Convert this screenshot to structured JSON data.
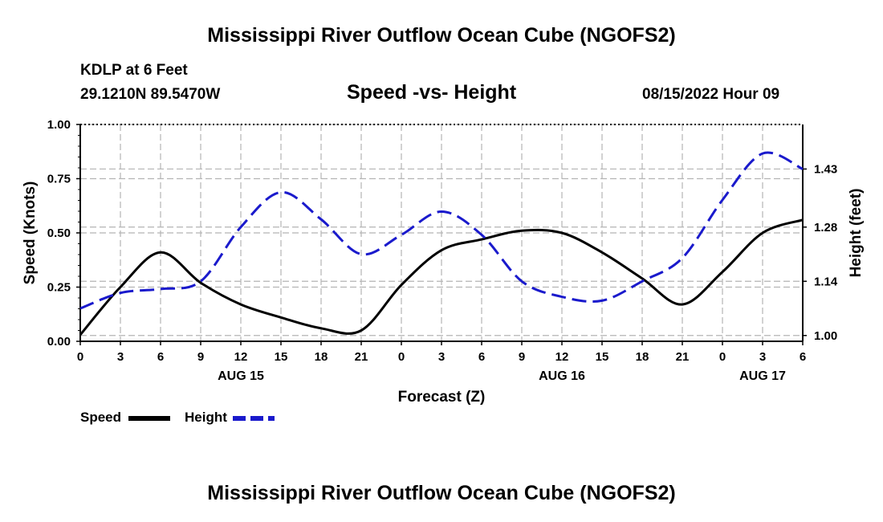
{
  "header": {
    "title": "Mississippi River Outflow Ocean Cube (NGOFS2)",
    "station": "KDLP at 6 Feet",
    "coords": "29.1210N  89.5470W",
    "chart_title": "Speed -vs- Height",
    "datetime": "08/15/2022 Hour 09"
  },
  "footer": {
    "title": "Mississippi River Outflow Ocean Cube (NGOFS2)"
  },
  "legend": {
    "speed_label": "Speed",
    "height_label": "Height"
  },
  "colors": {
    "speed": "#000000",
    "height": "#1a1acc",
    "grid": "#b4b4b4"
  },
  "chart_data": {
    "type": "line",
    "title": "Speed -vs- Height",
    "xlabel": "Forecast (Z)",
    "ylabel": "Speed (Knots)",
    "y2label": "Height (feet)",
    "x_ticks": [
      "0",
      "3",
      "6",
      "9",
      "12",
      "15",
      "18",
      "21",
      "0",
      "3",
      "6",
      "9",
      "12",
      "15",
      "18",
      "21",
      "0",
      "3",
      "6"
    ],
    "x_range_hours": [
      0,
      54
    ],
    "date_labels": [
      {
        "label": "AUG 15",
        "hour": 12
      },
      {
        "label": "AUG 16",
        "hour": 36
      },
      {
        "label": "AUG 17",
        "hour": 51
      }
    ],
    "ylim": [
      0,
      1
    ],
    "y_ticks": [
      "0.00",
      "0.25",
      "0.50",
      "0.75",
      "1.00"
    ],
    "y2lim": [
      0.985,
      1.545
    ],
    "y2_ticks": [
      "1.00",
      "1.14",
      "1.28",
      "1.43"
    ],
    "series": [
      {
        "name": "Speed",
        "axis": "left",
        "x": [
          0,
          3,
          6,
          9,
          12,
          15,
          18,
          21,
          24,
          27,
          30,
          33,
          36,
          39,
          42,
          45,
          48,
          51,
          54
        ],
        "values": [
          0.03,
          0.25,
          0.41,
          0.27,
          0.17,
          0.11,
          0.06,
          0.05,
          0.26,
          0.42,
          0.47,
          0.51,
          0.5,
          0.41,
          0.29,
          0.17,
          0.32,
          0.5,
          0.56
        ]
      },
      {
        "name": "Height",
        "axis": "right",
        "x": [
          0,
          3,
          6,
          9,
          12,
          15,
          18,
          21,
          24,
          27,
          30,
          33,
          36,
          39,
          42,
          45,
          48,
          51,
          54
        ],
        "values": [
          1.07,
          1.11,
          1.12,
          1.14,
          1.28,
          1.37,
          1.3,
          1.21,
          1.26,
          1.32,
          1.26,
          1.14,
          1.1,
          1.09,
          1.14,
          1.2,
          1.35,
          1.47,
          1.43
        ]
      }
    ]
  }
}
